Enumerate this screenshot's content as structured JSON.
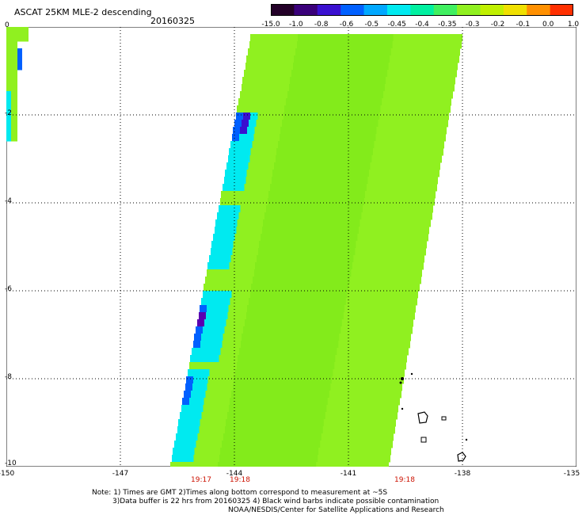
{
  "header": {
    "title": "ASCAT 25KM MLE-2 descending",
    "date": "20160325"
  },
  "colorbar": {
    "labels": [
      "-15.0",
      "-1.0",
      "-0.8",
      "-0.6",
      "-0.5",
      "-0.45",
      "-0.4",
      "-0.35",
      "-0.3",
      "-0.2",
      "-0.1",
      "0.0",
      "1.0"
    ],
    "colors": [
      "#230028",
      "#3a007a",
      "#3a10d0",
      "#0060ff",
      "#00a8ff",
      "#00eaf0",
      "#00f0a0",
      "#40f060",
      "#90f020",
      "#c0f000",
      "#f0e000",
      "#ff9000",
      "#ff3000"
    ]
  },
  "map": {
    "x_tick_labels": [
      "-150",
      "-147",
      "-144",
      "-141",
      "-138",
      "-135"
    ],
    "y_tick_labels": [
      "0",
      "-2",
      "-4",
      "-6",
      "-8",
      "-10"
    ],
    "time_labels": [
      "19:17",
      "19:18",
      "19:18"
    ],
    "time_label_color": "#cc1100",
    "swath_colors": {
      "background": "#90f020",
      "dark_green": "#78e818",
      "cyan": "#00eaf0",
      "blue": "#0060ff",
      "deep_blue": "#3a10d0",
      "purple": "#5a00b0"
    }
  },
  "notes": {
    "line1": "Note: 1) Times are GMT 2)Times along bottom correspond to measurement at ~5S",
    "line2": "3)Data buffer is 22 hrs from 20160325 4) Black wind barbs indicate possible contamination",
    "line3": "NOAA/NESDIS/Center for Satellite Applications and Research"
  }
}
